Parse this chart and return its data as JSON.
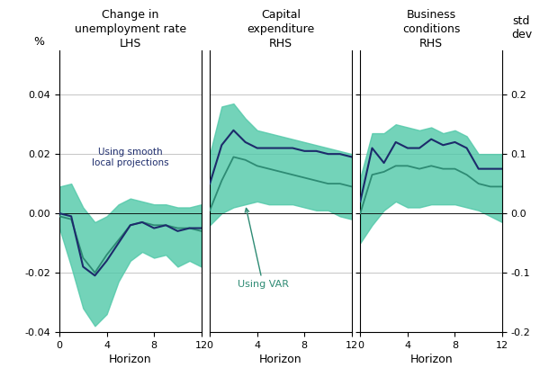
{
  "panel1": {
    "title": "Change in\nunemployment rate\nLHS",
    "horizon": [
      0,
      1,
      2,
      3,
      4,
      5,
      6,
      7,
      8,
      9,
      10,
      11,
      12
    ],
    "smooth_line": [
      0.0,
      -0.001,
      -0.018,
      -0.021,
      -0.016,
      -0.01,
      -0.004,
      -0.003,
      -0.005,
      -0.004,
      -0.006,
      -0.005,
      -0.005
    ],
    "var_line": [
      -0.001,
      -0.002,
      -0.015,
      -0.02,
      -0.014,
      -0.009,
      -0.004,
      -0.003,
      -0.004,
      -0.004,
      -0.005,
      -0.005,
      -0.006
    ],
    "ci_upper": [
      0.009,
      0.01,
      0.002,
      -0.003,
      -0.001,
      0.003,
      0.005,
      0.004,
      0.003,
      0.003,
      0.002,
      0.002,
      0.003
    ],
    "ci_lower": [
      -0.005,
      -0.018,
      -0.032,
      -0.038,
      -0.034,
      -0.023,
      -0.016,
      -0.013,
      -0.015,
      -0.014,
      -0.018,
      -0.016,
      -0.018
    ]
  },
  "panel2": {
    "title": "Capital\nexpenditure\nRHS",
    "horizon": [
      0,
      1,
      2,
      3,
      4,
      5,
      6,
      7,
      8,
      9,
      10,
      11,
      12
    ],
    "smooth_line": [
      0.01,
      0.023,
      0.028,
      0.024,
      0.022,
      0.022,
      0.022,
      0.022,
      0.021,
      0.021,
      0.02,
      0.02,
      0.019
    ],
    "var_line": [
      0.001,
      0.011,
      0.019,
      0.018,
      0.016,
      0.015,
      0.014,
      0.013,
      0.012,
      0.011,
      0.01,
      0.01,
      0.009
    ],
    "ci_upper": [
      0.02,
      0.036,
      0.037,
      0.032,
      0.028,
      0.027,
      0.026,
      0.025,
      0.024,
      0.023,
      0.022,
      0.021,
      0.02
    ],
    "ci_lower": [
      -0.004,
      0.0,
      0.002,
      0.003,
      0.004,
      0.003,
      0.003,
      0.003,
      0.002,
      0.001,
      0.001,
      -0.001,
      -0.002
    ]
  },
  "panel3": {
    "title": "Business\nconditions\nRHS",
    "horizon": [
      0,
      1,
      2,
      3,
      4,
      5,
      6,
      7,
      8,
      9,
      10,
      11,
      12
    ],
    "smooth_line": [
      0.004,
      0.022,
      0.017,
      0.024,
      0.022,
      0.022,
      0.025,
      0.023,
      0.024,
      0.022,
      0.015,
      0.015,
      0.015
    ],
    "var_line": [
      0.0,
      0.013,
      0.014,
      0.016,
      0.016,
      0.015,
      0.016,
      0.015,
      0.015,
      0.013,
      0.01,
      0.009,
      0.009
    ],
    "ci_upper": [
      0.012,
      0.027,
      0.027,
      0.03,
      0.029,
      0.028,
      0.029,
      0.027,
      0.028,
      0.026,
      0.02,
      0.02,
      0.02
    ],
    "ci_lower": [
      -0.01,
      -0.004,
      0.001,
      0.004,
      0.002,
      0.002,
      0.003,
      0.003,
      0.003,
      0.002,
      0.001,
      -0.001,
      -0.003
    ]
  },
  "ylim": [
    -0.04,
    0.055
  ],
  "lhs_yticks": [
    -0.04,
    -0.02,
    0.0,
    0.02,
    0.04
  ],
  "lhs_ytick_labels": [
    "-0.04",
    "-0.02",
    "0.00",
    "0.02",
    "0.04"
  ],
  "rhs_ytick_labels": [
    "-0.2",
    "-0.1",
    "0.0",
    "0.1",
    "0.2"
  ],
  "xticks": [
    0,
    4,
    8,
    12
  ],
  "colors": {
    "navy": "#1c2b6b",
    "teal_line": "#2e8b74",
    "teal_fill": "#50c8a8",
    "grid": "#bbbbbb",
    "background": "#ffffff",
    "title_color": "#000000",
    "label_color": "#000000",
    "axis_text_color": "#333333"
  },
  "lhs_label": "%",
  "rhs_label": "std\ndev",
  "xlabel": "Horizon"
}
